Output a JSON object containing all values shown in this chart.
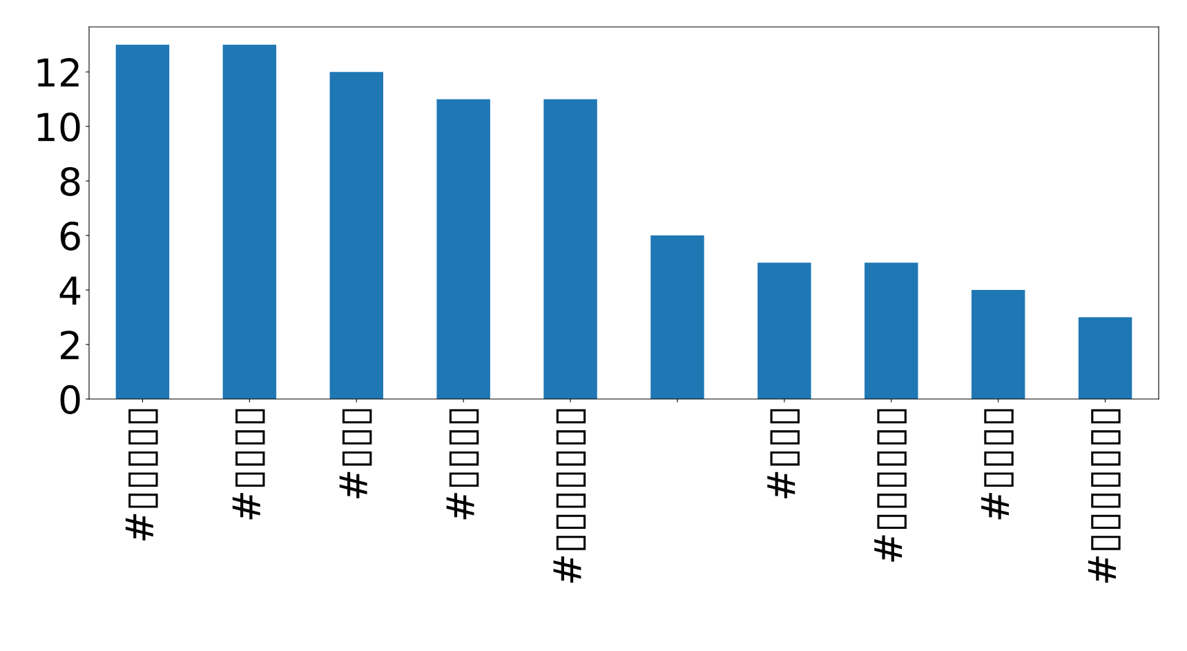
{
  "chart_data": {
    "type": "bar",
    "categories": [
      "#▯▯▯▯▯",
      "#▯▯▯▯",
      "#▯▯▯",
      "#▯▯▯▯",
      "#▯▯▯▯▯▯▯",
      null,
      "#▯▯▯",
      "#▯▯▯▯▯▯",
      "#▯▯▯▯",
      "#▯▯▯▯▯▯▯"
    ],
    "values": [
      13,
      13,
      12,
      11,
      11,
      6,
      5,
      5,
      4,
      3
    ],
    "color": "#1f77b4",
    "ylim": [
      0,
      13.65
    ],
    "yticks": [
      0,
      2,
      4,
      6,
      8,
      10,
      12
    ],
    "grid": false,
    "legend": false
  }
}
